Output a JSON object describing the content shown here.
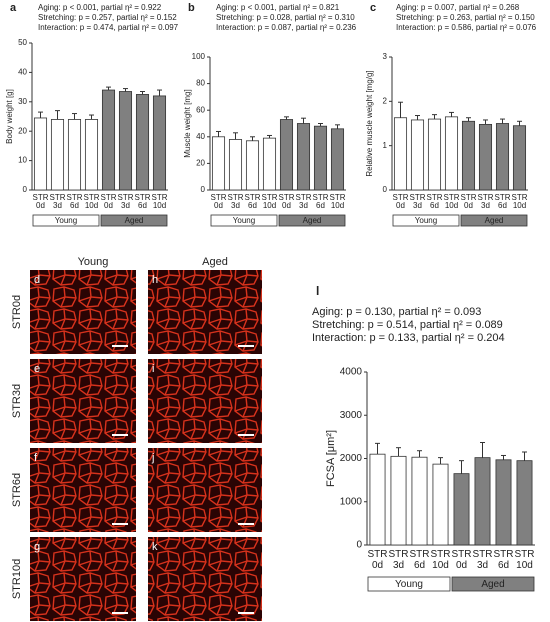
{
  "chart_data": [
    {
      "type": "bar",
      "label": "a",
      "stats": [
        "Aging: p < 0.001, partial η² = 0.922",
        "Stretching: p = 0.257, partial η² = 0.152",
        "Interaction: p = 0.474, partial η² = 0.097"
      ],
      "ylabel": "Body weight [g]",
      "categories": [
        "STR 0d",
        "STR 3d",
        "STR 6d",
        "STR 10d",
        "STR 0d",
        "STR 3d",
        "STR 6d",
        "STR 10d"
      ],
      "series": [
        {
          "name": "Young",
          "color": "#ffffff",
          "values": [
            24.5,
            24,
            24,
            24,
            null,
            null,
            null,
            null
          ],
          "errors": [
            2,
            3,
            2,
            1.5,
            null,
            null,
            null,
            null
          ]
        },
        {
          "name": "Aged",
          "color": "#808080",
          "values": [
            null,
            null,
            null,
            null,
            34,
            33.5,
            32.5,
            32
          ],
          "errors": [
            null,
            null,
            null,
            null,
            1,
            1,
            1,
            2
          ]
        }
      ],
      "ylim": [
        0,
        50
      ],
      "yticks": [
        0,
        10,
        20,
        30,
        40,
        50
      ]
    },
    {
      "type": "bar",
      "label": "b",
      "stats": [
        "Aging: p < 0.001, partial η² = 0.821",
        "Stretching: p = 0.028, partial η² = 0.310",
        "Interaction: p = 0.087, partial η² = 0.236"
      ],
      "ylabel": "Muscle weight [mg]",
      "categories": [
        "STR 0d",
        "STR 3d",
        "STR 6d",
        "STR 10d",
        "STR 0d",
        "STR 3d",
        "STR 6d",
        "STR 10d"
      ],
      "series": [
        {
          "name": "Young",
          "color": "#ffffff",
          "values": [
            40,
            38,
            37,
            39,
            null,
            null,
            null,
            null
          ],
          "errors": [
            4,
            5,
            3,
            2,
            null,
            null,
            null,
            null
          ]
        },
        {
          "name": "Aged",
          "color": "#808080",
          "values": [
            null,
            null,
            null,
            null,
            53,
            50,
            48,
            46
          ],
          "errors": [
            null,
            null,
            null,
            null,
            2,
            4,
            2,
            3
          ]
        }
      ],
      "ylim": [
        0,
        100
      ],
      "yticks": [
        0,
        20,
        40,
        60,
        80,
        100
      ]
    },
    {
      "type": "bar",
      "label": "c",
      "stats": [
        "Aging: p = 0.007, partial η² = 0.268",
        "Stretching: p = 0.263, partial η² = 0.150",
        "Interaction: p = 0.586, partial η² = 0.076"
      ],
      "ylabel": "Relative muscle weight [mg/g]",
      "categories": [
        "STR 0d",
        "STR 3d",
        "STR 6d",
        "STR 10d",
        "STR 0d",
        "STR 3d",
        "STR 6d",
        "STR 10d"
      ],
      "series": [
        {
          "name": "Young",
          "color": "#ffffff",
          "values": [
            1.63,
            1.58,
            1.6,
            1.65,
            null,
            null,
            null,
            null
          ],
          "errors": [
            0.35,
            0.1,
            0.1,
            0.1,
            null,
            null,
            null,
            null
          ]
        },
        {
          "name": "Aged",
          "color": "#808080",
          "values": [
            null,
            null,
            null,
            null,
            1.55,
            1.48,
            1.5,
            1.45
          ],
          "errors": [
            null,
            null,
            null,
            null,
            0.08,
            0.1,
            0.1,
            0.1
          ]
        }
      ],
      "ylim": [
        0,
        3
      ],
      "yticks": [
        0,
        1,
        2,
        3
      ]
    },
    {
      "type": "bar",
      "label": "l",
      "stats": [
        "Aging: p = 0.130, partial η² = 0.093",
        "Stretching: p = 0.514, partial η² = 0.089",
        "Interaction: p = 0.133, partial η² = 0.204"
      ],
      "ylabel": "FCSA [μm²]",
      "categories": [
        "STR 0d",
        "STR 3d",
        "STR 6d",
        "STR 10d",
        "STR 0d",
        "STR 3d",
        "STR 6d",
        "STR 10d"
      ],
      "series": [
        {
          "name": "Young",
          "color": "#ffffff",
          "values": [
            2100,
            2050,
            2030,
            1870,
            null,
            null,
            null,
            null
          ],
          "errors": [
            250,
            200,
            150,
            150,
            null,
            null,
            null,
            null
          ]
        },
        {
          "name": "Aged",
          "color": "#808080",
          "values": [
            null,
            null,
            null,
            null,
            1650,
            2020,
            1970,
            1950
          ],
          "errors": [
            null,
            null,
            null,
            null,
            300,
            350,
            100,
            200
          ]
        }
      ],
      "ylim": [
        0,
        4000
      ],
      "yticks": [
        0,
        1000,
        2000,
        3000,
        4000
      ]
    }
  ],
  "micrographs": {
    "columns": [
      "Young",
      "Aged"
    ],
    "rows": [
      "STR0d",
      "STR3d",
      "STR6d",
      "STR10d"
    ],
    "panels": [
      "d",
      "e",
      "f",
      "g",
      "h",
      "i",
      "j",
      "k"
    ]
  }
}
